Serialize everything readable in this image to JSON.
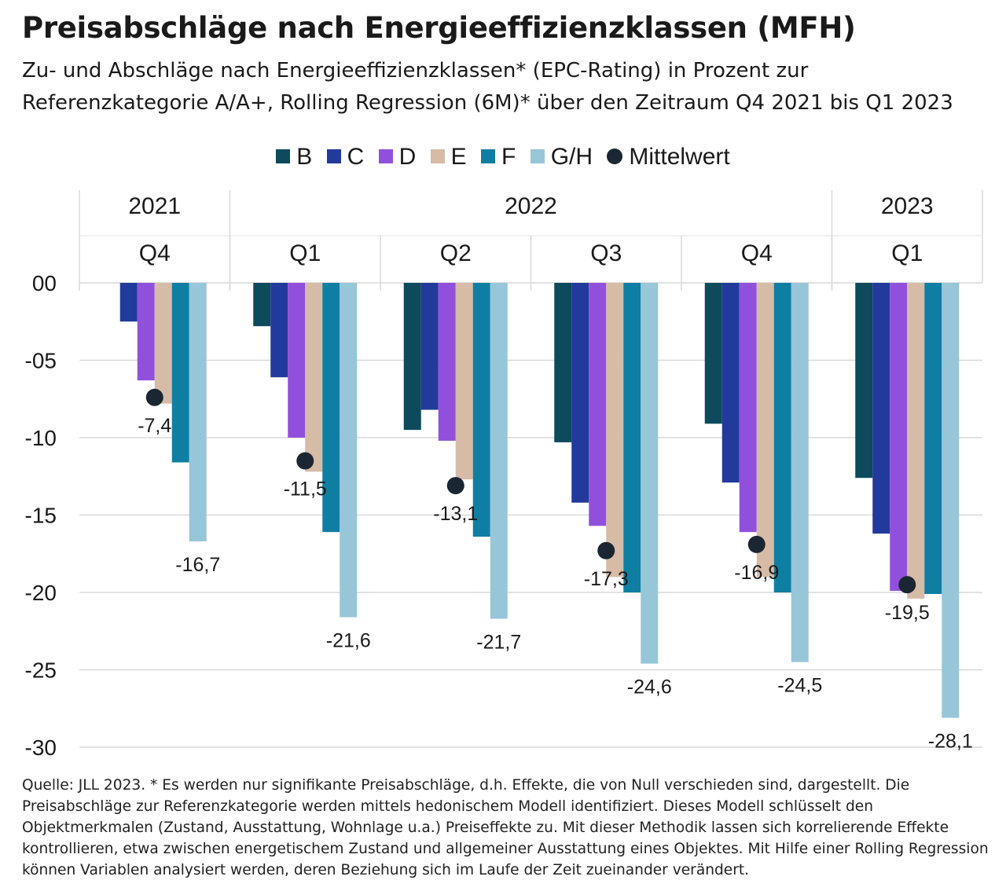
{
  "title": "Preisabschläge nach Energieeffizienzklassen (MFH)",
  "subtitle": "Zu- und Abschläge nach Energieeffizienzklassen* (EPC-Rating) in Prozent zur Referenzkategorie A/A+, Rolling Regression (6M)* über den Zeitraum Q4 2021 bis Q1 2023",
  "footer": "Quelle: JLL 2023. * Es werden nur signifikante Preisabschläge, d.h. Effekte, die von Null verschieden sind, dargestellt. Die Preisabschläge zur Referenzkategorie werden mittels hedonischem Modell identifiziert. Dieses Modell schlüsselt den Objektmerkmalen (Zustand, Ausstattung, Wohnlage u.a.) Preiseffekte zu. Mit dieser Methodik lassen sich korrelierende Effekte kontrollieren, etwa zwischen energetischem Zustand und allgemeiner Ausstattung eines Objektes. Mit Hilfe einer Rolling Regression können Variablen analysiert werden, deren Beziehung sich im Laufe der Zeit zueinander verändert.",
  "chart_data": {
    "type": "bar",
    "title": "Preisabschläge nach Energieeffizienzklassen (MFH)",
    "years": [
      {
        "label": "2021",
        "span": 1
      },
      {
        "label": "2022",
        "span": 4
      },
      {
        "label": "2023",
        "span": 1
      }
    ],
    "categories": [
      "Q4",
      "Q1",
      "Q2",
      "Q3",
      "Q4",
      "Q1"
    ],
    "ylim": [
      -30,
      0
    ],
    "yticks": [
      0,
      -5,
      -10,
      -15,
      -20,
      -25,
      -30
    ],
    "ytick_labels": [
      "00",
      "-05",
      "-10",
      "-15",
      "-20",
      "-25",
      "-30"
    ],
    "grid": true,
    "legend_position": "top",
    "series": [
      {
        "name": "B",
        "color": "#0d4a5c",
        "values": [
          null,
          -2.8,
          -9.5,
          -10.3,
          -9.1,
          -12.6
        ]
      },
      {
        "name": "C",
        "color": "#213a9b",
        "values": [
          -2.5,
          -6.1,
          -8.2,
          -14.2,
          -12.9,
          -16.2
        ]
      },
      {
        "name": "D",
        "color": "#9150dc",
        "values": [
          -6.3,
          -10.0,
          -10.2,
          -15.7,
          -16.1,
          -19.9
        ]
      },
      {
        "name": "E",
        "color": "#d6bba7",
        "values": [
          -7.8,
          -12.2,
          -12.7,
          -19.0,
          -19.0,
          -20.4
        ]
      },
      {
        "name": "F",
        "color": "#0f7ea3",
        "values": [
          -11.6,
          -16.1,
          -16.4,
          -20.0,
          -20.0,
          -20.1
        ]
      },
      {
        "name": "G/H",
        "color": "#97c6d8",
        "values": [
          -16.7,
          -21.6,
          -21.7,
          -24.6,
          -24.5,
          -28.1
        ]
      }
    ],
    "mean": {
      "name": "Mittelwert",
      "color": "#1b2633",
      "values": [
        -7.4,
        -11.5,
        -13.1,
        -17.3,
        -16.9,
        -19.5
      ],
      "labels": [
        "-7,4",
        "-11,5",
        "-13,1",
        "-17,3",
        "-16,9",
        "-19,5"
      ]
    },
    "gh_labels": [
      "-16,7",
      "-21,6",
      "-21,7",
      "-24,6",
      "-24,5",
      "-28,1"
    ]
  }
}
